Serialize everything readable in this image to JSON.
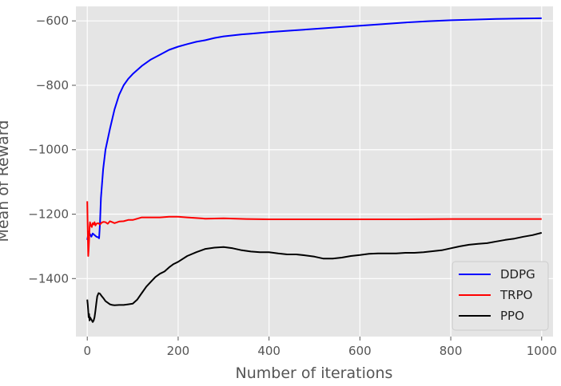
{
  "chart_data": {
    "type": "line",
    "xlabel": "Number of iterations",
    "ylabel": "Mean of Reward",
    "xlim": [
      -25,
      1025
    ],
    "ylim": [
      -1580,
      -555
    ],
    "xticks": [
      0,
      200,
      400,
      600,
      800,
      1000
    ],
    "yticks": [
      -1400,
      -1200,
      -1000,
      -800,
      -600
    ],
    "xtick_labels": [
      "0",
      "200",
      "400",
      "600",
      "800",
      "1000"
    ],
    "ytick_labels": [
      "−1400",
      "−1200",
      "−1000",
      "−800",
      "−600"
    ],
    "grid": true,
    "legend_position": "lower-right",
    "series": [
      {
        "name": "DDPG",
        "color": "#0000ff",
        "x": [
          0,
          3,
          6,
          9,
          12,
          16,
          20,
          24,
          26,
          28,
          30,
          35,
          40,
          50,
          60,
          70,
          80,
          90,
          100,
          120,
          140,
          160,
          180,
          200,
          220,
          240,
          260,
          280,
          300,
          320,
          340,
          360,
          400,
          450,
          500,
          550,
          600,
          650,
          700,
          750,
          800,
          850,
          900,
          950,
          1000
        ],
        "y": [
          -1280,
          -1255,
          -1262,
          -1270,
          -1260,
          -1265,
          -1270,
          -1272,
          -1275,
          -1230,
          -1150,
          -1060,
          -1000,
          -935,
          -875,
          -830,
          -800,
          -780,
          -765,
          -740,
          -720,
          -705,
          -690,
          -680,
          -672,
          -665,
          -660,
          -653,
          -648,
          -645,
          -642,
          -640,
          -635,
          -630,
          -625,
          -620,
          -615,
          -610,
          -605,
          -601,
          -598,
          -596,
          -594,
          -593,
          -592
        ]
      },
      {
        "name": "TRPO",
        "color": "#ff0000",
        "x": [
          0,
          1,
          2,
          3,
          4,
          5,
          6,
          8,
          10,
          12,
          14,
          16,
          18,
          20,
          24,
          28,
          32,
          36,
          40,
          45,
          50,
          55,
          60,
          70,
          80,
          90,
          100,
          110,
          120,
          140,
          160,
          180,
          200,
          220,
          240,
          260,
          300,
          350,
          400,
          500,
          600,
          700,
          800,
          900,
          1000
        ],
        "y": [
          -1160,
          -1250,
          -1330,
          -1310,
          -1280,
          -1240,
          -1225,
          -1235,
          -1240,
          -1228,
          -1232,
          -1225,
          -1235,
          -1230,
          -1228,
          -1232,
          -1226,
          -1224,
          -1225,
          -1230,
          -1222,
          -1225,
          -1228,
          -1223,
          -1222,
          -1218,
          -1218,
          -1214,
          -1210,
          -1210,
          -1210,
          -1208,
          -1208,
          -1210,
          -1212,
          -1214,
          -1213,
          -1215,
          -1216,
          -1216,
          -1216,
          -1216,
          -1215,
          -1215,
          -1215
        ]
      },
      {
        "name": "PPO",
        "color": "#000000",
        "x": [
          0,
          1,
          2,
          3,
          4,
          5,
          6,
          8,
          10,
          12,
          14,
          16,
          18,
          20,
          22,
          25,
          28,
          32,
          36,
          40,
          45,
          50,
          55,
          60,
          70,
          80,
          90,
          100,
          110,
          120,
          130,
          140,
          150,
          160,
          170,
          180,
          190,
          200,
          220,
          240,
          260,
          280,
          300,
          320,
          340,
          360,
          380,
          400,
          420,
          440,
          460,
          480,
          500,
          520,
          540,
          560,
          580,
          600,
          620,
          640,
          660,
          680,
          700,
          720,
          740,
          760,
          780,
          800,
          820,
          840,
          860,
          880,
          900,
          920,
          940,
          960,
          980,
          1000
        ],
        "y": [
          -1465,
          -1480,
          -1500,
          -1520,
          -1510,
          -1530,
          -1520,
          -1525,
          -1530,
          -1535,
          -1530,
          -1520,
          -1500,
          -1475,
          -1455,
          -1445,
          -1447,
          -1455,
          -1462,
          -1470,
          -1475,
          -1480,
          -1482,
          -1483,
          -1482,
          -1482,
          -1480,
          -1478,
          -1465,
          -1445,
          -1425,
          -1410,
          -1395,
          -1385,
          -1378,
          -1365,
          -1355,
          -1348,
          -1330,
          -1318,
          -1308,
          -1304,
          -1302,
          -1306,
          -1312,
          -1316,
          -1318,
          -1318,
          -1322,
          -1325,
          -1325,
          -1328,
          -1332,
          -1338,
          -1338,
          -1335,
          -1330,
          -1327,
          -1323,
          -1322,
          -1322,
          -1322,
          -1320,
          -1320,
          -1318,
          -1315,
          -1312,
          -1306,
          -1300,
          -1295,
          -1292,
          -1290,
          -1285,
          -1280,
          -1276,
          -1270,
          -1265,
          -1258
        ]
      }
    ]
  }
}
